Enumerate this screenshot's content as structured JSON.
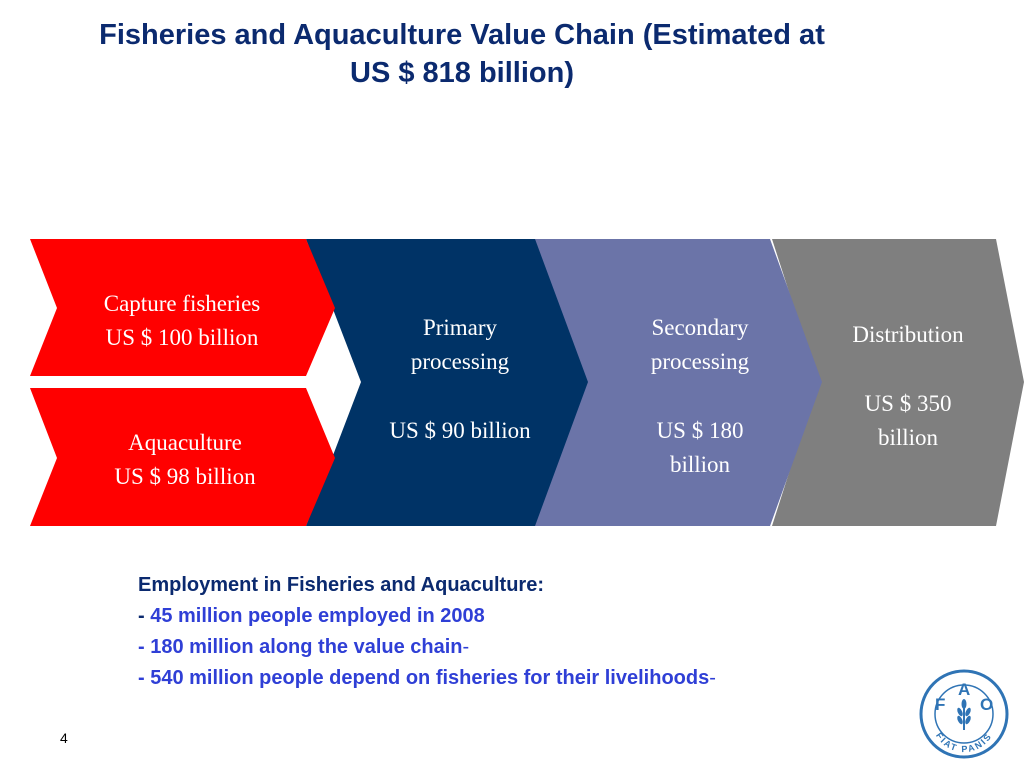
{
  "title": {
    "line1": "Fisheries and Aquaculture Value Chain (Estimated at",
    "line2": "US $ 818 billion)"
  },
  "colors": {
    "title": "#0b2a6f",
    "red": "#ff0000",
    "navy": "#003366",
    "lavender": "#6b74a8",
    "gray": "#7f7f7f",
    "bullet_blue": "#2f3fd6",
    "logo_blue": "#2f74b5"
  },
  "stages": {
    "capture": {
      "line1": "Capture fisheries",
      "line2": "US $ 100 billion"
    },
    "aquaculture": {
      "line1": "Aquaculture",
      "line2": "US $ 98 billion"
    },
    "primary": {
      "line1": "Primary",
      "line2": "processing",
      "value": "US $ 90 billion"
    },
    "secondary": {
      "line1": "Secondary",
      "line2": "processing",
      "value1": "US $ 180",
      "value2": "billion"
    },
    "distribution": {
      "line1": "Distribution",
      "value1": "US $ 350",
      "value2": "billion"
    }
  },
  "employment": {
    "heading": "Employment in Fisheries and Aquaculture:",
    "bullet1_prefix": "- ",
    "bullet1": "45 million people employed in 2008",
    "bullet2": "- 180 million along the value chain",
    "bullet2_suffix": "-",
    "bullet3": "- 540 million people depend on fisheries for their livelihoods",
    "bullet3_suffix": "-"
  },
  "page_number": "4",
  "logo": {
    "letters": [
      "F",
      "A",
      "O"
    ],
    "motto": "FIAT PANIS",
    "icon": "fao-wheat-logo"
  }
}
